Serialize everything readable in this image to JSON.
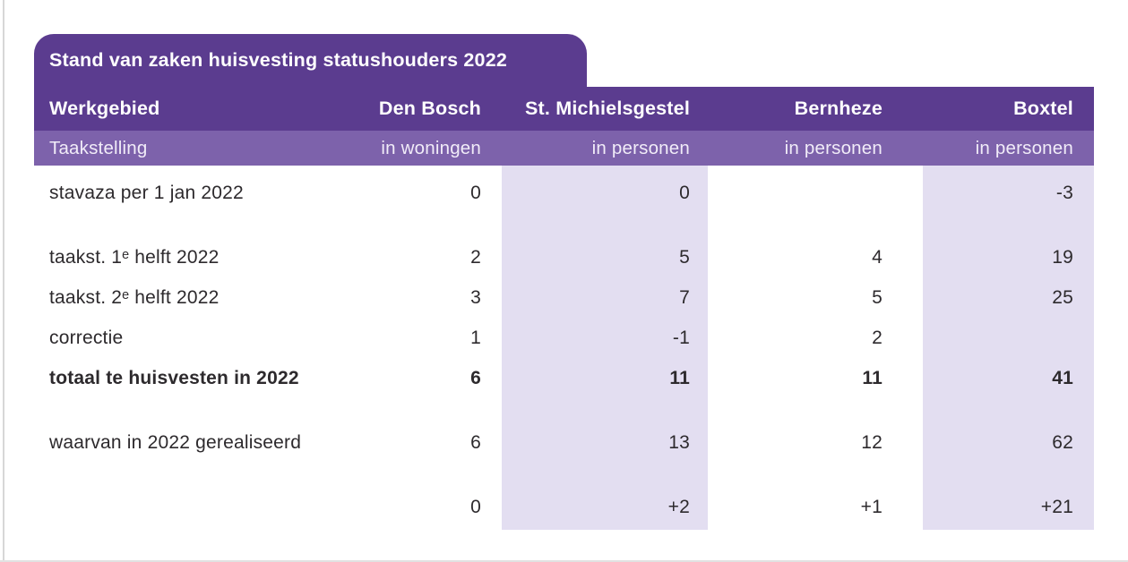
{
  "title": "Stand van zaken huisvesting statushouders 2022",
  "table": {
    "header": {
      "col_label": "Werkgebied",
      "columns": [
        "Den Bosch",
        "St. Michielsgestel",
        "Bernheze",
        "Boxtel"
      ]
    },
    "subheader": {
      "col_label": "Taakstelling",
      "units": [
        "in woningen",
        "in personen",
        "in personen",
        "in personen"
      ]
    },
    "rows": [
      {
        "label": "stavaza per 1 jan 2022",
        "values": [
          "0",
          "0",
          "",
          "-3"
        ],
        "bold": false,
        "gap_before": false
      },
      {
        "label": "taakst. 1ᵉ helft 2022",
        "values": [
          "2",
          "5",
          "4",
          "19"
        ],
        "bold": false,
        "gap_before": true
      },
      {
        "label": "taakst. 2ᵉ helft 2022",
        "values": [
          "3",
          "7",
          "5",
          "25"
        ],
        "bold": false,
        "gap_before": false
      },
      {
        "label": "correctie",
        "values": [
          "1",
          "-1",
          "2",
          ""
        ],
        "bold": false,
        "gap_before": false
      },
      {
        "label": "totaal te huisvesten in 2022",
        "values": [
          "6",
          "11",
          "11",
          "41"
        ],
        "bold": true,
        "gap_before": false
      },
      {
        "label": "waarvan in 2022 gerealiseerd",
        "values": [
          "6",
          "13",
          "12",
          "62"
        ],
        "bold": false,
        "gap_before": true
      },
      {
        "label": "",
        "values": [
          "0",
          "+2",
          "+1",
          "+21"
        ],
        "bold": false,
        "gap_before": true
      }
    ]
  },
  "colors": {
    "header_bg": "#5b3c8f",
    "subheader_bg": "#7d62ab",
    "column_shade": "#e3def1",
    "body_text": "#2d2a2d",
    "subheader_text": "#f1ecf8"
  }
}
